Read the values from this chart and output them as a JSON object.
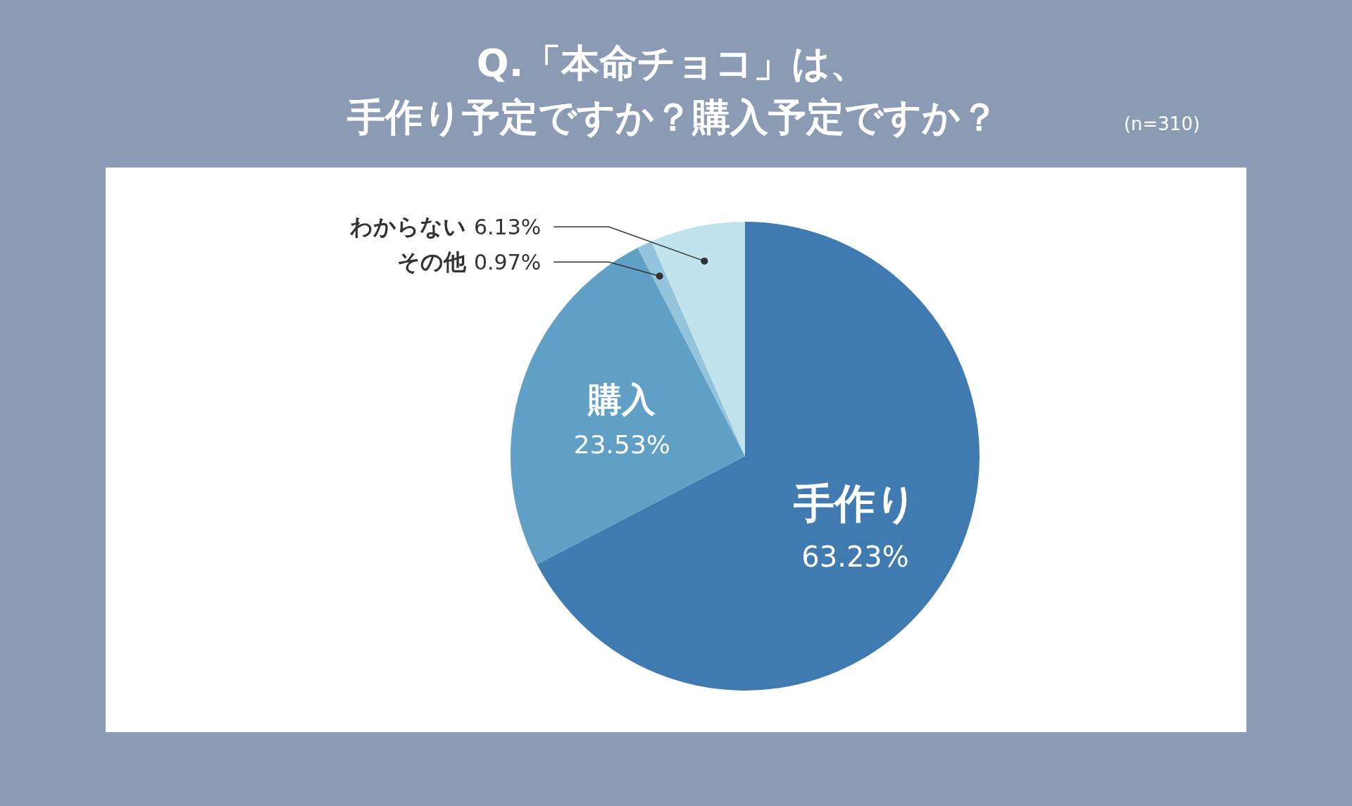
{
  "chart_data": {
    "type": "pie",
    "title": "Q.「本命チョコ」は、",
    "subtitle": "手作り予定ですか？購入予定ですか？",
    "annotations": [
      "(n=310)"
    ],
    "categories": [
      "手作り",
      "購入",
      "その他",
      "わからない"
    ],
    "values": [
      63.23,
      23.53,
      0.97,
      6.13
    ],
    "value_labels": [
      "63.23%",
      "23.53%",
      "0.97%",
      "6.13%"
    ],
    "colors": [
      "#3f7ab0",
      "#609fc6",
      "#93c4dc",
      "#c0e3ee"
    ]
  }
}
